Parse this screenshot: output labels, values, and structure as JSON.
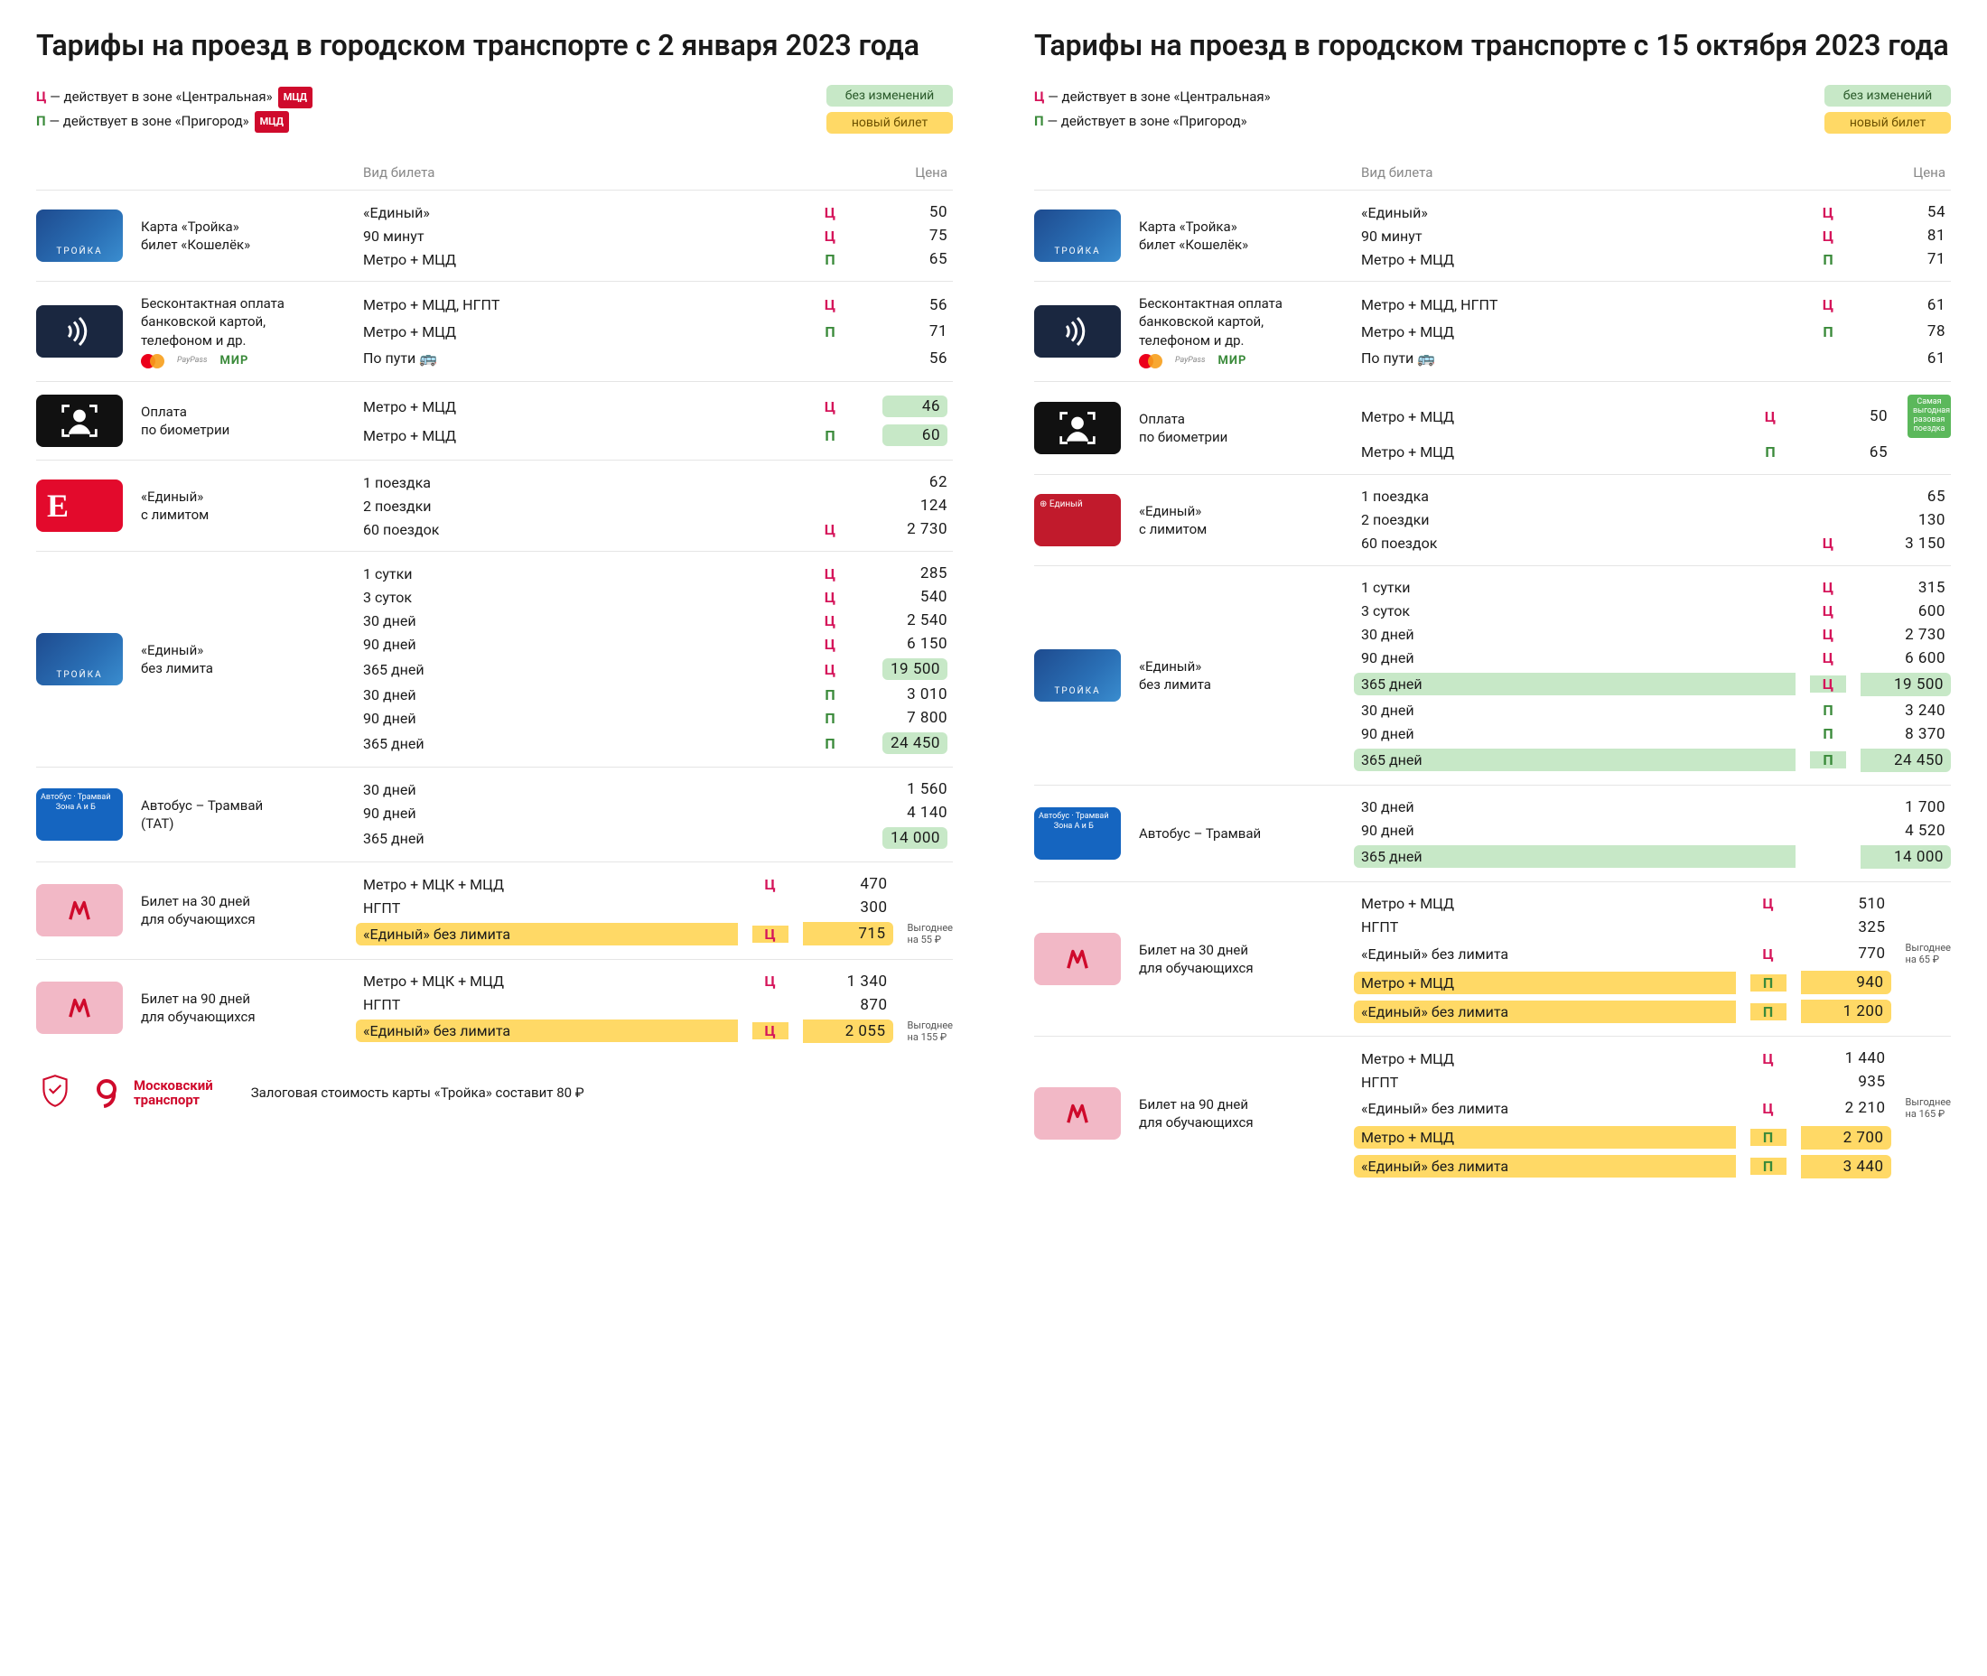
{
  "shared": {
    "zone_c_letter": "Ц",
    "zone_p_letter": "П",
    "zone_c_text": " — действует в зоне «Центральная»",
    "zone_p_text": " — действует в зоне «Пригород»",
    "mcd_badge": "МЦД",
    "legend_unchanged": "без изменений",
    "legend_new": "новый билет",
    "th_type": "Вид билета",
    "th_price": "Цена",
    "colors": {
      "zone_c": "#d5145a",
      "zone_p": "#3a8a3a",
      "mcd_bg": "#cf0a2c",
      "green_pill": "#c7e8c7",
      "yellow_pill": "#ffd966"
    },
    "pay_mir": "МИР",
    "pay_paypass": "PayPass",
    "bus_emoji": "🚌"
  },
  "left": {
    "title": "Тарифы на проезд в городском транспорте с 2 января 2023 года",
    "groups": [
      {
        "card": "troika",
        "label_l1": "Карта «Тройка»",
        "label_l2": "билет «Кошелёк»",
        "rows": [
          {
            "type": "«Единый»",
            "zone": "c",
            "price": "50"
          },
          {
            "type": "90 минут",
            "zone": "c",
            "price": "75"
          },
          {
            "type": "Метро + МЦД",
            "zone": "p",
            "price": "65"
          }
        ]
      },
      {
        "card": "nfc",
        "label_l1": "Бесконтактная оплата",
        "label_l2": "банковской картой,",
        "label_l3": "телефоном и др.",
        "paylogos": true,
        "rows": [
          {
            "type": "Метро + МЦД, НГПТ",
            "zone": "c",
            "price": "56"
          },
          {
            "type": "Метро + МЦД",
            "zone": "p",
            "price": "71"
          },
          {
            "type": "По пути 🚌",
            "zone": "",
            "price": "56"
          }
        ]
      },
      {
        "card": "bio",
        "label_l1": "Оплата",
        "label_l2": "по биометрии",
        "rows": [
          {
            "type": "Метро + МЦД",
            "zone": "c",
            "price": "46",
            "price_hl": "green"
          },
          {
            "type": "Метро + МЦД",
            "zone": "p",
            "price": "60",
            "price_hl": "green"
          }
        ]
      },
      {
        "card": "e",
        "label_l1": "«Единый»",
        "label_l2": "с лимитом",
        "rows": [
          {
            "type": "1 поездка",
            "zone": "",
            "price": "62"
          },
          {
            "type": "2 поездки",
            "zone": "",
            "price": "124"
          },
          {
            "type": "60 поездок",
            "zone": "c",
            "price": "2 730"
          }
        ]
      },
      {
        "card": "troika",
        "label_l1": "«Единый»",
        "label_l2": "без лимита",
        "rows": [
          {
            "type": "1 сутки",
            "zone": "c",
            "price": "285"
          },
          {
            "type": "3 суток",
            "zone": "c",
            "price": "540"
          },
          {
            "type": "30 дней",
            "zone": "c",
            "price": "2 540"
          },
          {
            "type": "90 дней",
            "zone": "c",
            "price": "6 150"
          },
          {
            "type": "365 дней",
            "zone": "c",
            "price": "19 500",
            "price_hl": "green"
          },
          {
            "type": "30 дней",
            "zone": "p",
            "price": "3 010"
          },
          {
            "type": "90 дней",
            "zone": "p",
            "price": "7 800"
          },
          {
            "type": "365 дней",
            "zone": "p",
            "price": "24 450",
            "price_hl": "green"
          }
        ]
      },
      {
        "card": "tat",
        "label_l1": "Автобус – Трамвай",
        "label_l2": "(ТАТ)",
        "rows": [
          {
            "type": "30 дней",
            "zone": "",
            "price": "1 560"
          },
          {
            "type": "90 дней",
            "zone": "",
            "price": "4 140"
          },
          {
            "type": "365 дней",
            "zone": "",
            "price": "14 000",
            "price_hl": "green"
          }
        ]
      },
      {
        "card": "stud",
        "label_l1": "Билет на 30 дней",
        "label_l2": "для обучающихся",
        "has_note": true,
        "rows": [
          {
            "type": "Метро + МЦК + МЦД",
            "zone": "c",
            "price": "470"
          },
          {
            "type": "НГПТ",
            "zone": "",
            "price": "300"
          },
          {
            "type": "«Единый» без лимита",
            "zone": "c",
            "price": "715",
            "row_hl": "yellow",
            "note": "Выгоднее\nна 55 ₽"
          }
        ]
      },
      {
        "card": "stud",
        "label_l1": "Билет на 90 дней",
        "label_l2": "для обучающихся",
        "has_note": true,
        "noborder": true,
        "rows": [
          {
            "type": "Метро + МЦК + МЦД",
            "zone": "c",
            "price": "1 340"
          },
          {
            "type": "НГПТ",
            "zone": "",
            "price": "870"
          },
          {
            "type": "«Единый» без лимита",
            "zone": "c",
            "price": "2 055",
            "row_hl": "yellow",
            "note": "Выгоднее\nна 155 ₽"
          }
        ]
      }
    ],
    "footer_brand_l1": "Московский",
    "footer_brand_l2": "транспорт",
    "deposit": "Залоговая стоимость карты  «Тройка» составит 80 ₽"
  },
  "right": {
    "title": "Тарифы на проезд в городском транспорте с 15 октября 2023 года",
    "groups": [
      {
        "card": "troika",
        "label_l1": "Карта «Тройка»",
        "label_l2": "билет «Кошелёк»",
        "rows": [
          {
            "type": "«Единый»",
            "zone": "c",
            "price": "54"
          },
          {
            "type": "90 минут",
            "zone": "c",
            "price": "81"
          },
          {
            "type": "Метро + МЦД",
            "zone": "p",
            "price": "71"
          }
        ]
      },
      {
        "card": "nfc",
        "label_l1": "Бесконтактная оплата",
        "label_l2": "банковской картой,",
        "label_l3": "телефоном и др.",
        "paylogos": true,
        "rows": [
          {
            "type": "Метро + МЦД, НГПТ",
            "zone": "c",
            "price": "61"
          },
          {
            "type": "Метро + МЦД",
            "zone": "p",
            "price": "78"
          },
          {
            "type": "По пути 🚌",
            "zone": "",
            "price": "61"
          }
        ]
      },
      {
        "card": "bio",
        "label_l1": "Оплата",
        "label_l2": "по биометрии",
        "has_note": true,
        "side_badge": "Самая выгодная разовая поездка",
        "rows": [
          {
            "type": "Метро + МЦД",
            "zone": "c",
            "price": "50"
          },
          {
            "type": "Метро + МЦД",
            "zone": "p",
            "price": "65"
          }
        ]
      },
      {
        "card": "edin",
        "label_l1": "«Единый»",
        "label_l2": "с лимитом",
        "rows": [
          {
            "type": "1 поездка",
            "zone": "",
            "price": "65"
          },
          {
            "type": "2 поездки",
            "zone": "",
            "price": "130"
          },
          {
            "type": "60 поездок",
            "zone": "c",
            "price": "3 150"
          }
        ]
      },
      {
        "card": "troika",
        "label_l1": "«Единый»",
        "label_l2": "без лимита",
        "rows": [
          {
            "type": "1 сутки",
            "zone": "c",
            "price": "315"
          },
          {
            "type": "3 суток",
            "zone": "c",
            "price": "600"
          },
          {
            "type": "30 дней",
            "zone": "c",
            "price": "2 730"
          },
          {
            "type": "90 дней",
            "zone": "c",
            "price": "6 600"
          },
          {
            "type": "365 дней",
            "zone": "c",
            "price": "19 500",
            "row_hl": "green"
          },
          {
            "type": "30 дней",
            "zone": "p",
            "price": "3 240"
          },
          {
            "type": "90 дней",
            "zone": "p",
            "price": "8 370"
          },
          {
            "type": "365 дней",
            "zone": "p",
            "price": "24 450",
            "row_hl": "green"
          }
        ]
      },
      {
        "card": "tat",
        "label_l1": "Автобус – Трамвай",
        "label_l2": "",
        "rows": [
          {
            "type": "30 дней",
            "zone": "",
            "price": "1 700"
          },
          {
            "type": "90 дней",
            "zone": "",
            "price": "4 520"
          },
          {
            "type": "365 дней",
            "zone": "",
            "price": "14 000",
            "row_hl": "green"
          }
        ]
      },
      {
        "card": "stud",
        "label_l1": "Билет на 30 дней",
        "label_l2": "для обучающихся",
        "has_note": true,
        "rows": [
          {
            "type": "Метро + МЦД",
            "zone": "c",
            "price": "510"
          },
          {
            "type": "НГПТ",
            "zone": "",
            "price": "325"
          },
          {
            "type": "«Единый» без лимита",
            "zone": "c",
            "price": "770",
            "note": "Выгоднее\nна 65 ₽"
          },
          {
            "type": "Метро + МЦД",
            "zone": "p",
            "price": "940",
            "row_hl": "yellow"
          },
          {
            "type": "«Единый» без лимита",
            "zone": "p",
            "price": "1 200",
            "row_hl": "yellow"
          }
        ]
      },
      {
        "card": "stud",
        "label_l1": "Билет на 90 дней",
        "label_l2": "для обучающихся",
        "has_note": true,
        "noborder": true,
        "rows": [
          {
            "type": "Метро + МЦД",
            "zone": "c",
            "price": "1 440"
          },
          {
            "type": "НГПТ",
            "zone": "",
            "price": "935"
          },
          {
            "type": "«Единый» без лимита",
            "zone": "c",
            "price": "2 210",
            "note": "Выгоднее\nна 165 ₽"
          },
          {
            "type": "Метро + МЦД",
            "zone": "p",
            "price": "2 700",
            "row_hl": "yellow"
          },
          {
            "type": "«Единый» без лимита",
            "zone": "p",
            "price": "3 440",
            "row_hl": "yellow"
          }
        ]
      }
    ]
  }
}
